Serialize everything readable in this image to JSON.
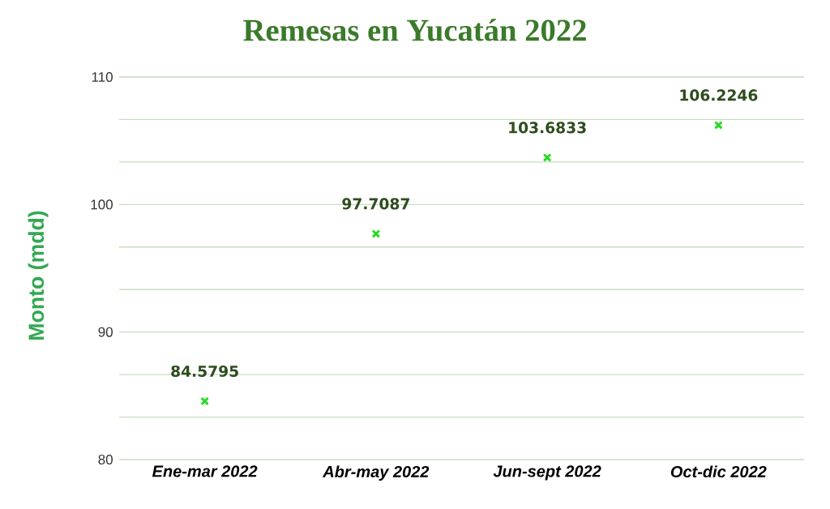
{
  "chart_data": {
    "type": "scatter",
    "title": "Remesas en Yucatán 2022",
    "ylabel": "Monto (mdd)",
    "categories": [
      "Ene-mar 2022",
      "Abr-may 2022",
      "Jun-sept 2022",
      "Oct-dic 2022"
    ],
    "values": [
      84.5795,
      97.7087,
      103.6833,
      106.2246
    ],
    "color": "#22dd22",
    "marker": "cross",
    "ylim": [
      80,
      110
    ],
    "yticks": [
      80,
      {
        "value": 83.33,
        "label": null
      },
      {
        "value": 86.67,
        "label": null
      },
      90,
      {
        "value": 93.33,
        "label": null
      },
      {
        "value": 96.67,
        "label": null
      },
      100,
      {
        "value": 103.33,
        "label": null
      },
      {
        "value": 106.67,
        "label": null
      },
      110
    ],
    "grid": "y",
    "data_labels": true
  }
}
